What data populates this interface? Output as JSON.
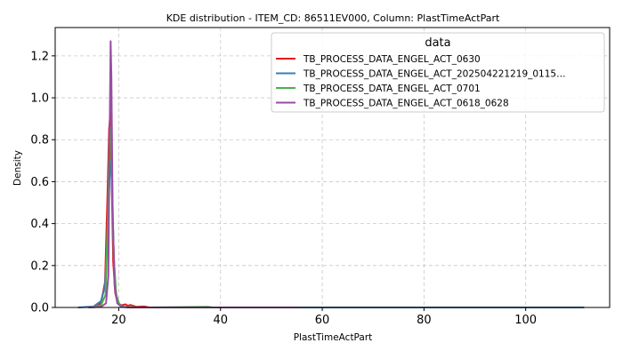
{
  "chart_data": {
    "type": "line",
    "title": "KDE distribution - ITEM_CD: 86511EV000, Column: PlastTimeActPart",
    "xlabel": "PlastTimeActPart",
    "ylabel": "Density",
    "xlim": [
      7.5,
      116.5
    ],
    "ylim": [
      0,
      1.335
    ],
    "xticks": [
      20,
      40,
      60,
      80,
      100
    ],
    "xtick_labels": [
      "20",
      "40",
      "60",
      "80",
      "100"
    ],
    "yticks": [
      0.0,
      0.2,
      0.4,
      0.6,
      0.8,
      1.0,
      1.2
    ],
    "ytick_labels": [
      "0.0",
      "0.2",
      "0.4",
      "0.6",
      "0.8",
      "1.0",
      "1.2"
    ],
    "grid": true,
    "legend": {
      "title": "data",
      "position": "top-right"
    },
    "series": [
      {
        "name": "TB_PROCESS_DATA_ENGEL_ACT_0630",
        "color": "#e41a1c",
        "x": [
          15.0,
          16.5,
          17.3,
          17.8,
          18.1,
          18.35,
          18.6,
          18.9,
          19.3,
          19.8,
          20.5,
          21.3,
          21.8,
          22.3,
          23.5,
          25.0,
          26.0,
          30.0,
          56.0
        ],
        "y": [
          0.0,
          0.02,
          0.12,
          0.55,
          0.85,
          0.93,
          0.62,
          0.22,
          0.07,
          0.02,
          0.01,
          0.015,
          0.008,
          0.012,
          0.003,
          0.005,
          0.0,
          0.0,
          0.0
        ]
      },
      {
        "name": "TB_PROCESS_DATA_ENGEL_ACT_202504221219_0115…",
        "color": "#377eb8",
        "x": [
          12.0,
          15.0,
          16.5,
          17.3,
          17.8,
          18.2,
          18.5,
          18.8,
          19.2,
          19.7,
          20.5,
          22.0,
          30.0,
          60.0,
          111.5
        ],
        "y": [
          0.0,
          0.004,
          0.03,
          0.1,
          0.35,
          0.63,
          0.7,
          0.42,
          0.12,
          0.03,
          0.005,
          0.0,
          0.0,
          0.0,
          0.0
        ]
      },
      {
        "name": "TB_PROCESS_DATA_ENGEL_ACT_0701",
        "color": "#4daf4a",
        "x": [
          14.5,
          16.5,
          17.4,
          17.9,
          18.2,
          18.45,
          18.7,
          19.0,
          19.5,
          20.2,
          21.0,
          25.0,
          37.5,
          38.5,
          50.0
        ],
        "y": [
          0.0,
          0.01,
          0.06,
          0.45,
          0.82,
          0.86,
          0.6,
          0.25,
          0.06,
          0.01,
          0.002,
          0.0,
          0.003,
          0.0,
          0.0
        ]
      },
      {
        "name": "TB_PROCESS_DATA_ENGEL_ACT_0618_0628",
        "color": "#984ea3",
        "x": [
          14.0,
          16.5,
          17.5,
          17.95,
          18.2,
          18.4,
          18.55,
          18.8,
          19.2,
          19.7,
          20.5,
          22.0,
          30.0,
          56.0
        ],
        "y": [
          0.0,
          0.003,
          0.02,
          0.15,
          0.8,
          1.27,
          1.1,
          0.45,
          0.1,
          0.02,
          0.003,
          0.0,
          0.0,
          0.0
        ]
      }
    ]
  }
}
